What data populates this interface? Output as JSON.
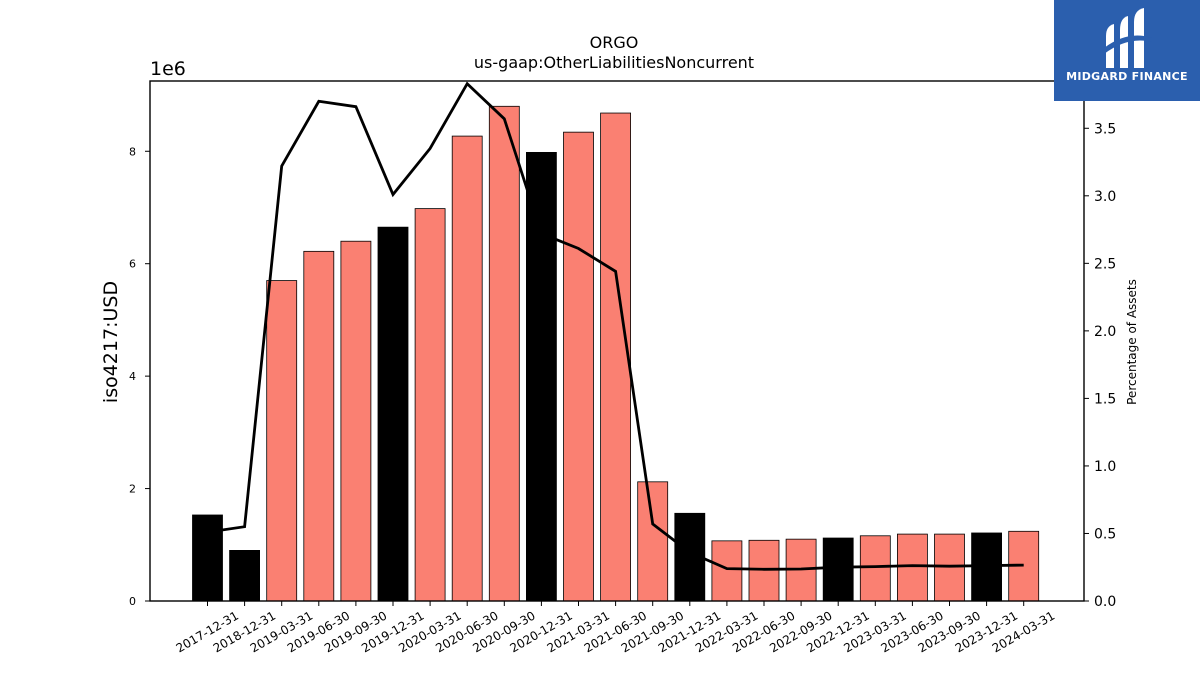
{
  "brand": {
    "name": "MIDGARD FINANCE",
    "logo_icon": "midgard-logo-icon",
    "background_color": "#2b5fae"
  },
  "chart_data": {
    "type": "bar",
    "title": "ORGO",
    "subtitle": "us-gaap:OtherLiabilitiesNoncurrent",
    "ylabel": "iso4217:USD",
    "y_offset_label": "1e6",
    "y2label": "Percentage of Assets",
    "ylim": [
      0,
      9250000
    ],
    "y2lim": [
      0,
      3.85
    ],
    "yticks": [
      0,
      2,
      4,
      6,
      8
    ],
    "yticks_scale": 1000000,
    "y2ticks": [
      0.0,
      0.5,
      1.0,
      1.5,
      2.0,
      2.5,
      3.0,
      3.5
    ],
    "colors": {
      "annual": "#000000",
      "quarterly": "#fa8072",
      "line": "#000000"
    },
    "categories": [
      "2017-12-31",
      "2018-12-31",
      "2019-03-31",
      "2019-06-30",
      "2019-09-30",
      "2019-12-31",
      "2020-03-31",
      "2020-06-30",
      "2020-09-30",
      "2020-12-31",
      "2021-03-31",
      "2021-06-30",
      "2021-09-30",
      "2021-12-31",
      "2022-03-31",
      "2022-06-30",
      "2022-09-30",
      "2022-12-31",
      "2023-03-31",
      "2023-06-30",
      "2023-09-30",
      "2023-12-31",
      "2024-03-31"
    ],
    "series": [
      {
        "kind": "bar",
        "values": [
          1530000,
          900000,
          5700000,
          6220000,
          6400000,
          6650000,
          6980000,
          8270000,
          8800000,
          7980000,
          8340000,
          8680000,
          2120000,
          1560000,
          1070000,
          1080000,
          1100000,
          1120000,
          1160000,
          1190000,
          1190000,
          1210000,
          1240000
        ],
        "period": [
          "annual",
          "annual",
          "quarterly",
          "quarterly",
          "quarterly",
          "annual",
          "quarterly",
          "quarterly",
          "quarterly",
          "annual",
          "quarterly",
          "quarterly",
          "quarterly",
          "annual",
          "quarterly",
          "quarterly",
          "quarterly",
          "annual",
          "quarterly",
          "quarterly",
          "quarterly",
          "annual",
          "quarterly"
        ]
      },
      {
        "kind": "line",
        "axis": "right",
        "values": [
          0.51,
          0.55,
          3.22,
          3.7,
          3.66,
          3.01,
          3.35,
          3.83,
          3.57,
          2.72,
          2.61,
          2.44,
          0.57,
          0.36,
          0.24,
          0.235,
          0.237,
          0.25,
          0.255,
          0.262,
          0.258,
          0.262,
          0.266
        ]
      }
    ]
  }
}
